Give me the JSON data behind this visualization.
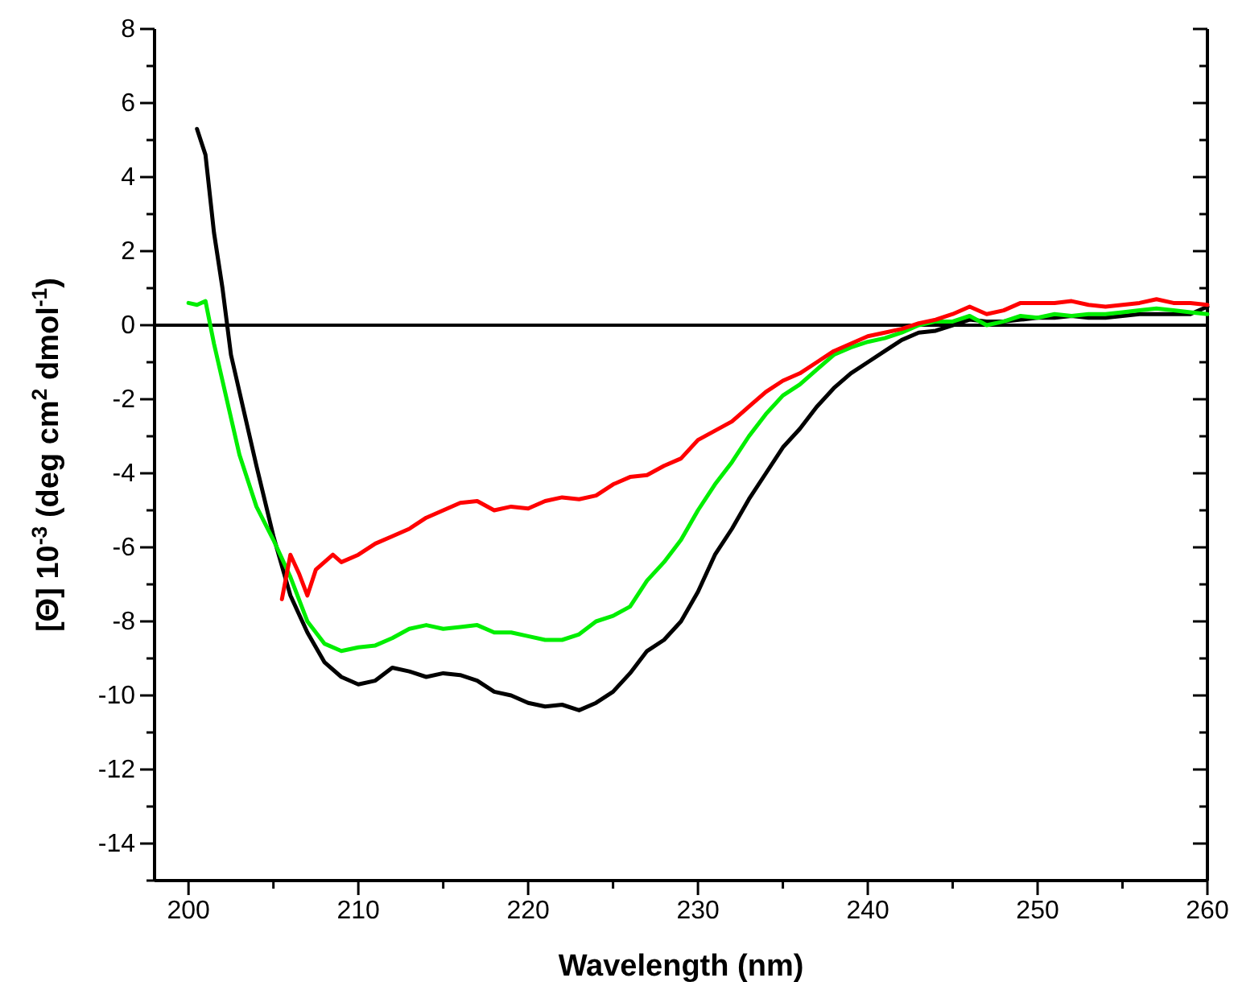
{
  "chart_data": {
    "type": "line",
    "xlabel": "Wavelength (nm)",
    "ylabel": "[Θ] 10$^{-3}$ (deg cm$^{2}$ dmol$^{-1}$)",
    "xlim": [
      198,
      260
    ],
    "ylim": [
      -15,
      8
    ],
    "xticks": [
      200,
      {
        "value": 205,
        "label": null
      },
      210,
      {
        "value": 215,
        "label": null
      },
      220,
      {
        "value": 225,
        "label": null
      },
      230,
      {
        "value": 235,
        "label": null
      },
      240,
      {
        "value": 245,
        "label": null
      },
      250,
      {
        "value": 255,
        "label": null
      },
      260
    ],
    "yticks": [
      {
        "value": -15,
        "label": null
      },
      -14,
      {
        "value": -13,
        "label": null
      },
      -12,
      {
        "value": -11,
        "label": null
      },
      -10,
      {
        "value": -9,
        "label": null
      },
      -8,
      {
        "value": -7,
        "label": null
      },
      -6,
      {
        "value": -5,
        "label": null
      },
      -4,
      {
        "value": -3,
        "label": null
      },
      -2,
      {
        "value": -1,
        "label": null
      },
      0,
      {
        "value": 1,
        "label": null
      },
      2,
      {
        "value": 3,
        "label": null
      },
      4,
      {
        "value": 5,
        "label": null
      },
      6,
      {
        "value": 7,
        "label": null
      },
      8
    ],
    "grid": false,
    "line_style": "solid",
    "marker": "none",
    "ref_lines": [
      {
        "axis": "y",
        "value": 0,
        "color": "#000000"
      }
    ],
    "series": [
      {
        "color": "#000000",
        "x": [
          200.5,
          201,
          201.5,
          202,
          202.5,
          203,
          204,
          205,
          206,
          207,
          208,
          209,
          210,
          211,
          212,
          213,
          214,
          215,
          216,
          217,
          218,
          219,
          220,
          221,
          222,
          223,
          224,
          225,
          226,
          227,
          228,
          229,
          230,
          231,
          232,
          233,
          234,
          235,
          236,
          237,
          238,
          239,
          240,
          241,
          242,
          243,
          244,
          245,
          246,
          247,
          248,
          249,
          250,
          251,
          252,
          253,
          254,
          255,
          256,
          257,
          258,
          259,
          260
        ],
        "values": [
          5.3,
          4.6,
          2.5,
          1.0,
          -0.8,
          -1.8,
          -3.8,
          -5.7,
          -7.3,
          -8.3,
          -9.1,
          -9.5,
          -9.7,
          -9.6,
          -9.25,
          -9.35,
          -9.5,
          -9.4,
          -9.45,
          -9.6,
          -9.9,
          -10.0,
          -10.2,
          -10.3,
          -10.25,
          -10.4,
          -10.2,
          -9.9,
          -9.4,
          -8.8,
          -8.5,
          -8.0,
          -7.2,
          -6.2,
          -5.5,
          -4.7,
          -4.0,
          -3.3,
          -2.8,
          -2.2,
          -1.7,
          -1.3,
          -1.0,
          -0.7,
          -0.4,
          -0.2,
          -0.15,
          0.0,
          0.15,
          0.1,
          0.1,
          0.15,
          0.2,
          0.2,
          0.25,
          0.2,
          0.2,
          0.25,
          0.3,
          0.3,
          0.3,
          0.3,
          0.5
        ]
      },
      {
        "color": "#00ee00",
        "x": [
          200,
          200.5,
          201,
          201.5,
          202,
          203,
          204,
          205,
          206,
          207,
          208,
          209,
          210,
          211,
          212,
          213,
          214,
          215,
          216,
          217,
          218,
          219,
          220,
          221,
          222,
          223,
          224,
          225,
          226,
          227,
          228,
          229,
          230,
          231,
          232,
          233,
          234,
          235,
          236,
          237,
          238,
          239,
          240,
          241,
          242,
          243,
          244,
          245,
          246,
          247,
          248,
          249,
          250,
          251,
          252,
          253,
          254,
          255,
          256,
          257,
          258,
          259,
          260
        ],
        "values": [
          0.6,
          0.55,
          0.65,
          -0.5,
          -1.5,
          -3.5,
          -4.9,
          -5.8,
          -6.8,
          -8.0,
          -8.6,
          -8.8,
          -8.7,
          -8.65,
          -8.45,
          -8.2,
          -8.1,
          -8.2,
          -8.15,
          -8.1,
          -8.3,
          -8.3,
          -8.4,
          -8.5,
          -8.5,
          -8.35,
          -8.0,
          -7.85,
          -7.6,
          -6.9,
          -6.4,
          -5.8,
          -5.0,
          -4.3,
          -3.7,
          -3.0,
          -2.4,
          -1.9,
          -1.6,
          -1.2,
          -0.8,
          -0.6,
          -0.45,
          -0.35,
          -0.2,
          0.0,
          0.1,
          0.1,
          0.25,
          0.0,
          0.1,
          0.25,
          0.2,
          0.3,
          0.25,
          0.3,
          0.3,
          0.35,
          0.4,
          0.45,
          0.4,
          0.35,
          0.3
        ]
      },
      {
        "color": "#ff0000",
        "x": [
          205.5,
          206,
          206.5,
          207,
          207.5,
          208.5,
          209,
          210,
          211,
          212,
          213,
          214,
          215,
          216,
          217,
          218,
          219,
          220,
          221,
          222,
          223,
          224,
          225,
          226,
          227,
          228,
          229,
          230,
          231,
          232,
          233,
          234,
          235,
          236,
          237,
          238,
          239,
          240,
          241,
          242,
          243,
          244,
          245,
          246,
          247,
          248,
          249,
          250,
          251,
          252,
          253,
          254,
          255,
          256,
          257,
          258,
          259,
          260
        ],
        "values": [
          -7.4,
          -6.2,
          -6.7,
          -7.3,
          -6.6,
          -6.2,
          -6.4,
          -6.2,
          -5.9,
          -5.7,
          -5.5,
          -5.2,
          -5.0,
          -4.8,
          -4.75,
          -5.0,
          -4.9,
          -4.95,
          -4.75,
          -4.65,
          -4.7,
          -4.6,
          -4.3,
          -4.1,
          -4.05,
          -3.8,
          -3.6,
          -3.1,
          -2.85,
          -2.6,
          -2.2,
          -1.8,
          -1.5,
          -1.3,
          -1.0,
          -0.7,
          -0.5,
          -0.3,
          -0.2,
          -0.1,
          0.05,
          0.15,
          0.3,
          0.5,
          0.3,
          0.4,
          0.6,
          0.6,
          0.6,
          0.65,
          0.55,
          0.5,
          0.55,
          0.6,
          0.7,
          0.6,
          0.6,
          0.55
        ]
      }
    ]
  }
}
